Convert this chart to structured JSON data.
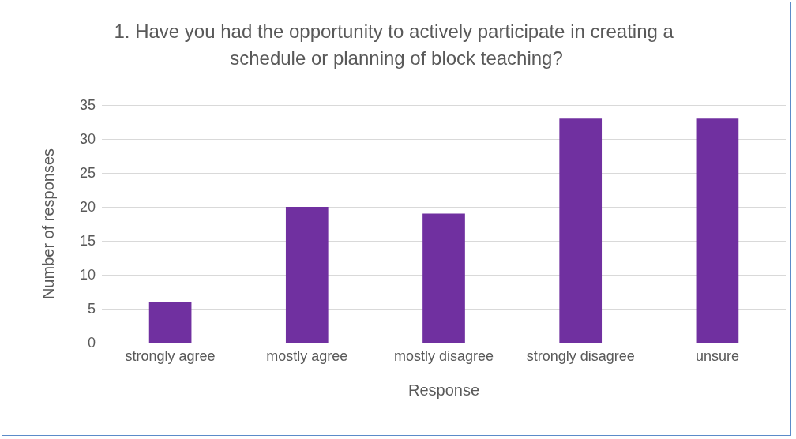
{
  "chart_data": {
    "type": "bar",
    "title": "1. Have you had the opportunity to actively participate in creating a schedule or planning of block teaching?",
    "xlabel": "Response",
    "ylabel": "Number of responses",
    "categories": [
      "strongly agree",
      "mostly agree",
      "mostly disagree",
      "strongly disagree",
      "unsure"
    ],
    "values": [
      6,
      20,
      19,
      33,
      33
    ],
    "color": "#7030a0",
    "ylim": [
      0,
      35
    ],
    "yticks": [
      0,
      5,
      10,
      15,
      20,
      25,
      30,
      35
    ],
    "grid": "y"
  }
}
